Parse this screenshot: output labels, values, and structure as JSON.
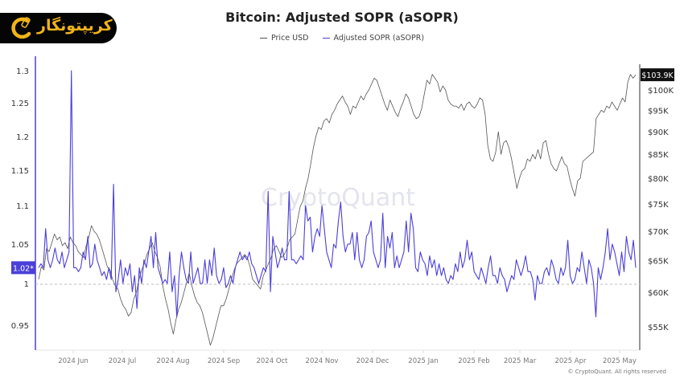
{
  "brand": {
    "logo_text": "کریپتونگار",
    "logo_icon": "crypto-coin-chain-icon"
  },
  "chart_data": {
    "type": "line",
    "title": "Bitcoin: Adjusted SOPR (aSOPR)",
    "legend": [
      {
        "name": "Price USD",
        "color": "#555555"
      },
      {
        "name": "Adjusted SOPR (aSOPR)",
        "color": "#4b3fd9"
      }
    ],
    "legend_position": "top-center",
    "watermark": "CryptoQuant",
    "copyright": "© CryptoQuant. All rights reserved",
    "x_tick_labels": [
      "2024 Jun",
      "2024 Jul",
      "2024 Aug",
      "2024 Sep",
      "2024 Oct",
      "2024 Nov",
      "2024 Dec",
      "2025 Jan",
      "2025 Feb",
      "2025 Mar",
      "2025 Apr",
      "2025 May"
    ],
    "x_range": [
      "2024-05-20",
      "2025-05-10"
    ],
    "left_axis": {
      "label": "Adjusted SOPR",
      "ticks": [
        1.3,
        1.25,
        1.2,
        1.15,
        1.1,
        1.05,
        1,
        0.95
      ],
      "current_value_label": "1.02*",
      "reference_line": 1
    },
    "right_axis": {
      "label": "Price USD",
      "ticks": [
        "$100K",
        "$95K",
        "$90K",
        "$85K",
        "$80K",
        "$75K",
        "$70K",
        "$65K",
        "$60K",
        "$55K"
      ],
      "tick_values": [
        100000,
        95000,
        90000,
        85000,
        80000,
        75000,
        70000,
        65000,
        60000,
        55000
      ],
      "current_value_label": "$103.9K"
    },
    "series": [
      {
        "name": "Adjusted SOPR (aSOPR)",
        "axis": "left",
        "values": [
          1.02,
          1.025,
          1.02,
          1.07,
          1.03,
          1.02,
          1.03,
          1.045,
          1.03,
          1.025,
          1.04,
          1.02,
          1.03,
          1.04,
          1.3,
          1.02,
          1.02,
          1.015,
          1.02,
          1.04,
          1.03,
          1.06,
          1.02,
          1.025,
          1.05,
          1.03,
          1.02,
          1.01,
          1.015,
          1.005,
          1.02,
          1.005,
          1.13,
          0.99,
          1.005,
          1.03,
          1.0,
          1.02,
          1.01,
          1.025,
          0.99,
          1.01,
          0.97,
          1.02,
          1.0,
          1.03,
          1.02,
          1.04,
          1.06,
          1.02,
          1.065,
          1.02,
          1.01,
          1.0,
          1.005,
          1.0,
          1.04,
          0.99,
          1.01,
          0.96,
          1.01,
          1.04,
          1.02,
          1.005,
          1.0,
          1.04,
          1.0,
          1.01,
          1.02,
          1.0,
          1.0,
          1.03,
          1.0,
          1.03,
          1.01,
          1.045,
          1.01,
          1.0,
          1.005,
          1.02,
          0.995,
          1.0,
          1.01,
          1.0,
          1.02,
          1.03,
          1.04,
          1.03,
          1.035,
          1.03,
          1.04,
          1.025,
          1.02,
          1.01,
          1.0,
          1.01,
          1.02,
          1.015,
          1.12,
          0.99,
          1.06,
          1.04,
          1.02,
          1.03,
          1.045,
          1.03,
          1.03,
          1.12,
          1.03,
          1.03,
          1.025,
          1.03,
          1.035,
          1.03,
          1.1,
          1.08,
          1.085,
          1.04,
          1.06,
          1.07,
          1.06,
          1.1,
          1.07,
          1.04,
          1.03,
          1.02,
          1.05,
          1.045,
          1.08,
          1.105,
          1.06,
          1.04,
          1.05,
          1.05,
          1.065,
          1.03,
          1.065,
          1.03,
          1.02,
          1.03,
          1.06,
          1.065,
          1.08,
          1.04,
          1.03,
          1.02,
          1.03,
          1.09,
          1.02,
          1.06,
          1.045,
          1.065,
          1.02,
          1.035,
          1.02,
          1.03,
          1.04,
          1.08,
          1.04,
          1.09,
          1.07,
          1.02,
          1.015,
          1.04,
          1.03,
          1.025,
          1.01,
          1.035,
          1.02,
          1.03,
          1.01,
          1.025,
          1.01,
          1.02,
          1.005,
          1.0,
          1.01,
          1.005,
          1.025,
          1.015,
          1.04,
          1.02,
          1.03,
          1.055,
          1.03,
          1.04,
          1.015,
          1.01,
          1.005,
          1.02,
          1.01,
          1.0,
          1.02,
          1.035,
          1.01,
          1.01,
          1.0,
          1.02,
          1.01,
          1.005,
          0.99,
          1.0,
          1.01,
          1.005,
          1.03,
          1.02,
          1.01,
          1.02,
          1.035,
          1.015,
          1.015,
          1.005,
          0.98,
          1.01,
          1.0,
          1.0,
          1.015,
          1.02,
          1.01,
          1.03,
          1.02,
          1.005,
          1.0,
          1.02,
          1.01,
          1.02,
          1.055,
          1.01,
          1.0,
          1.005,
          1.02,
          1.015,
          1.04,
          1.02,
          1.0,
          1.03,
          1.02,
          1.0,
          0.96,
          1.02,
          1.005,
          1.02,
          1.04,
          1.07,
          1.03,
          1.05,
          1.04,
          1.025,
          1.01,
          1.04,
          1.015,
          1.06,
          1.04,
          1.03,
          1.055,
          1.02
        ]
      },
      {
        "name": "Price USD",
        "axis": "right",
        "values": [
          62000,
          64000,
          63500,
          67000,
          66500,
          68000,
          69500,
          68500,
          69000,
          67500,
          68000,
          67000,
          69000,
          68000,
          67500,
          66500,
          66000,
          65500,
          67500,
          69000,
          71000,
          70000,
          69500,
          68500,
          67000,
          65500,
          64000,
          63500,
          62000,
          61000,
          60500,
          59000,
          58000,
          57500,
          56500,
          57000,
          59000,
          60000,
          62000,
          63500,
          64500,
          66000,
          67000,
          68000,
          66500,
          65500,
          64000,
          61000,
          59000,
          57500,
          55500,
          54000,
          56000,
          57500,
          58500,
          60000,
          61500,
          63000,
          61000,
          59500,
          58500,
          58000,
          57000,
          55500,
          54000,
          52500,
          53500,
          55000,
          56500,
          58000,
          58000,
          59000,
          60500,
          62000,
          63500,
          64500,
          65000,
          65500,
          66000,
          65500,
          64000,
          62000,
          61500,
          61000,
          60500,
          62500,
          63500,
          64500,
          65500,
          67000,
          67500,
          66500,
          65500,
          66000,
          67000,
          68500,
          69000,
          69500,
          72000,
          74500,
          75500,
          78000,
          80000,
          83000,
          86500,
          89000,
          91000,
          90500,
          92500,
          93000,
          92000,
          94000,
          95000,
          96500,
          97500,
          98500,
          97000,
          96000,
          94000,
          96000,
          95500,
          97000,
          98500,
          97500,
          99000,
          100000,
          101500,
          103000,
          102500,
          100500,
          98500,
          96500,
          95000,
          97500,
          96000,
          94500,
          93500,
          95500,
          97000,
          99000,
          98000,
          96000,
          94000,
          93000,
          93500,
          95500,
          99000,
          102500,
          101500,
          104000,
          103000,
          102000,
          99500,
          101000,
          100000,
          97500,
          96500,
          96000,
          96000,
          95500,
          96500,
          95000,
          96500,
          97000,
          96000,
          95500,
          96500,
          98000,
          97500,
          94000,
          87000,
          84000,
          83500,
          85500,
          90000,
          85000,
          87500,
          88000,
          86500,
          84000,
          81000,
          78000,
          80000,
          81500,
          82000,
          84000,
          83500,
          85000,
          84000,
          86000,
          84000,
          87500,
          88000,
          85000,
          83000,
          82000,
          81500,
          83000,
          84500,
          83000,
          82500,
          80000,
          78000,
          76500,
          79500,
          80000,
          83500,
          84000,
          84500,
          85000,
          85500,
          93000,
          94000,
          95000,
          94500,
          96000,
          95500,
          97000,
          96000,
          95000,
          96500,
          98000,
          97000,
          102000,
          104000,
          103000,
          103900
        ]
      }
    ]
  }
}
